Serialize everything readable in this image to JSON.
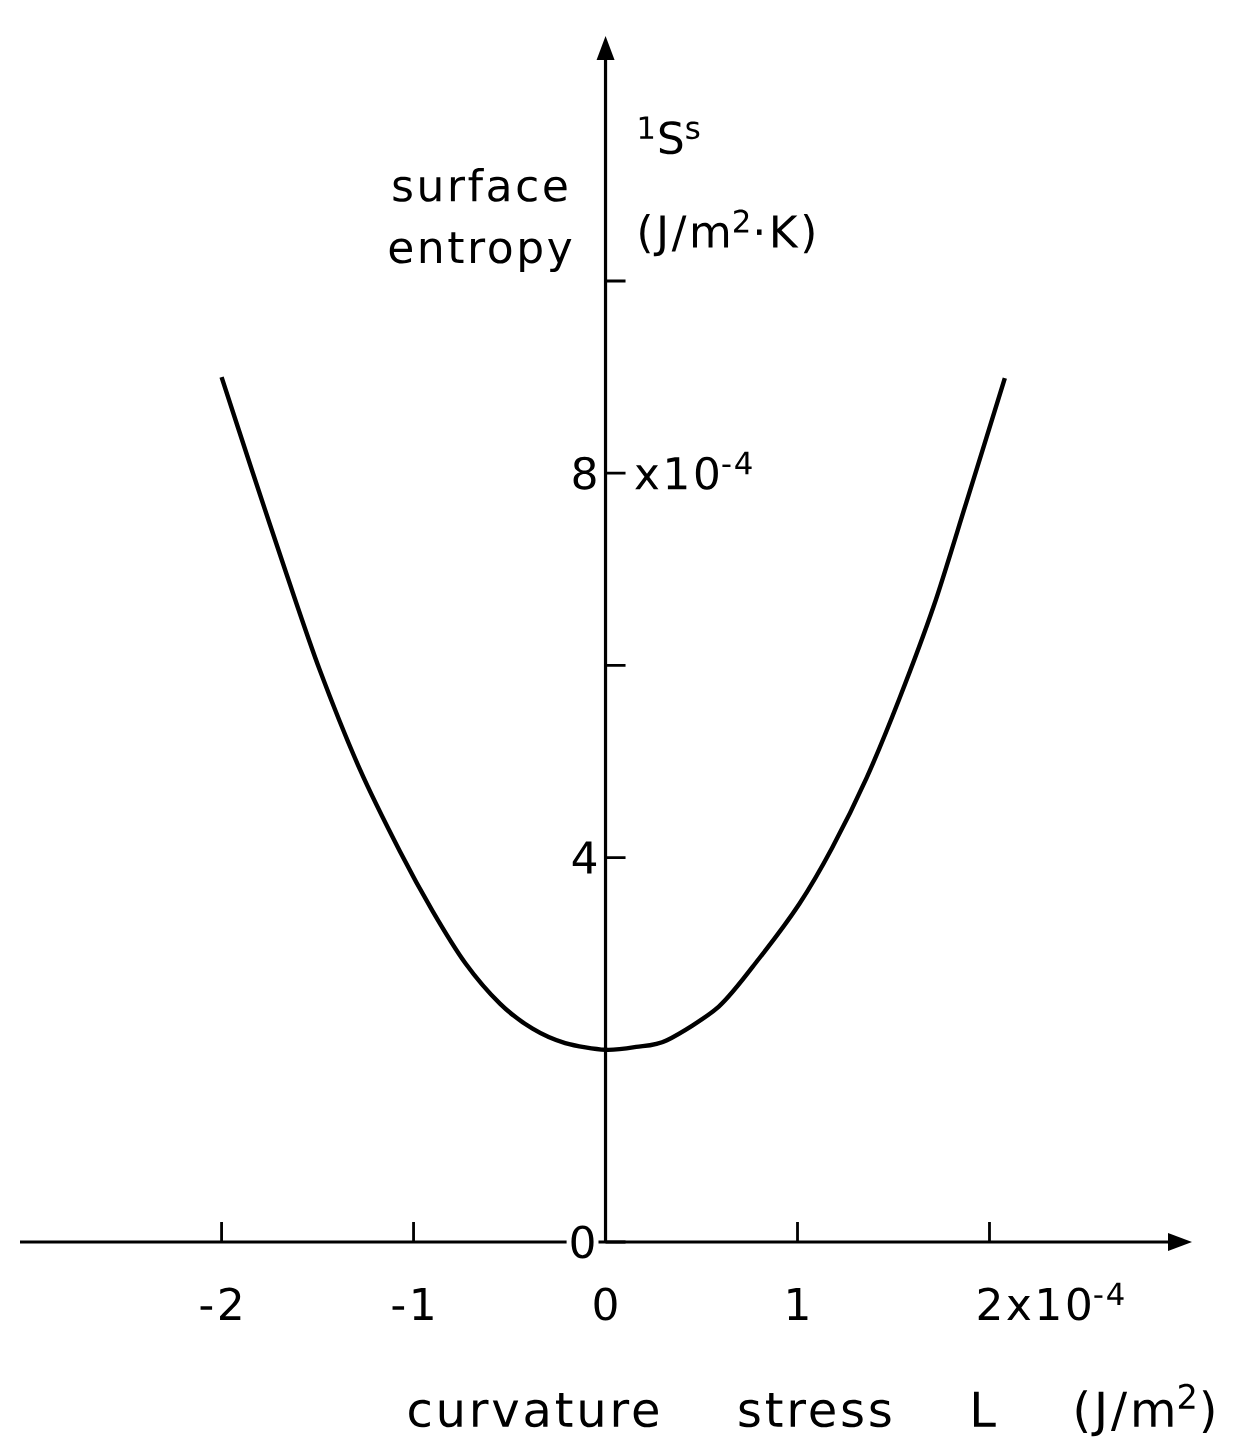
{
  "chart_data": {
    "type": "line",
    "xlabel": "curvature stress L (J/m$^{2}$)",
    "ylabel": "surface entropy",
    "annotations": [
      "$^{1}$S$^{s}$ (J/m$^{2}$·K)",
      "x10$^{-4}$",
      "x10$^{-4}$"
    ],
    "x": [
      -2.0,
      -1.84,
      -1.66,
      -1.49,
      -1.28,
      -1.07,
      -0.9,
      -0.73,
      -0.55,
      -0.38,
      -0.21,
      0.0,
      0.16,
      0.32,
      0.59,
      0.8,
      1.01,
      1.18,
      1.36,
      1.53,
      1.71,
      1.88,
      2.08
    ],
    "series": [
      {
        "color": "#000000",
        "values": [
          9.0,
          8.02,
          6.94,
          5.96,
          4.92,
          4.06,
          3.44,
          2.9,
          2.48,
          2.22,
          2.07,
          2.0,
          2.03,
          2.1,
          2.45,
          2.95,
          3.52,
          4.1,
          4.83,
          5.65,
          6.62,
          7.7,
          8.99
        ]
      }
    ],
    "xlim": [
      -3.05,
      2.93
    ],
    "ylim": [
      0,
      12.3
    ],
    "xticks": [
      -2,
      -1,
      0,
      1,
      2
    ],
    "yticks": [
      0,
      4,
      {
        "value": 6,
        "label": null
      },
      8,
      {
        "value": 10,
        "label": null
      }
    ]
  }
}
